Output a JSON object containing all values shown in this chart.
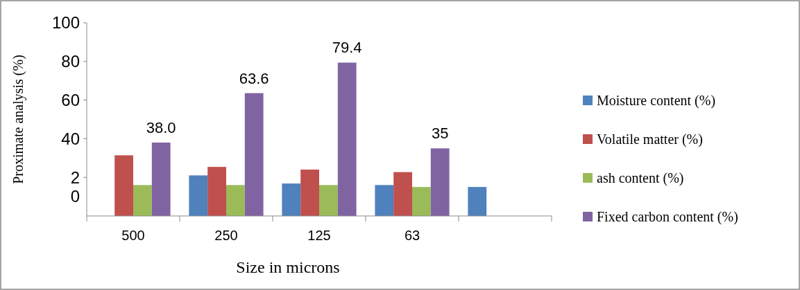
{
  "chart_data": {
    "type": "bar",
    "xlabel": "Size in microns",
    "ylabel": "Proximate analysis (%)",
    "categories": [
      "500",
      "250",
      "125",
      "63",
      null
    ],
    "series": [
      {
        "name": "Moisture content (%)",
        "color": "#4f81bd",
        "values": [
          null,
          21.0,
          16.8,
          16.0,
          15.0
        ]
      },
      {
        "name": "Volatile matter (%)",
        "color": "#c0504d",
        "values": [
          31.4,
          25.4,
          24.0,
          22.7,
          null
        ]
      },
      {
        "name": "ash content (%)",
        "color": "#9bbb59",
        "values": [
          16.0,
          16.0,
          16.0,
          15.0,
          null
        ]
      },
      {
        "name": "Fixed carbon content (%)",
        "color": "#8064a2",
        "values": [
          38.0,
          63.6,
          79.4,
          35,
          null
        ],
        "value_labels": [
          "38.0",
          "63.6",
          "79.4",
          "35",
          null
        ]
      }
    ],
    "ylim": [
      0,
      100
    ],
    "yticks": [
      100,
      80,
      60,
      40,
      {
        "value": 20,
        "label": "2\n0"
      }
    ],
    "legend": "right",
    "grid": false
  }
}
